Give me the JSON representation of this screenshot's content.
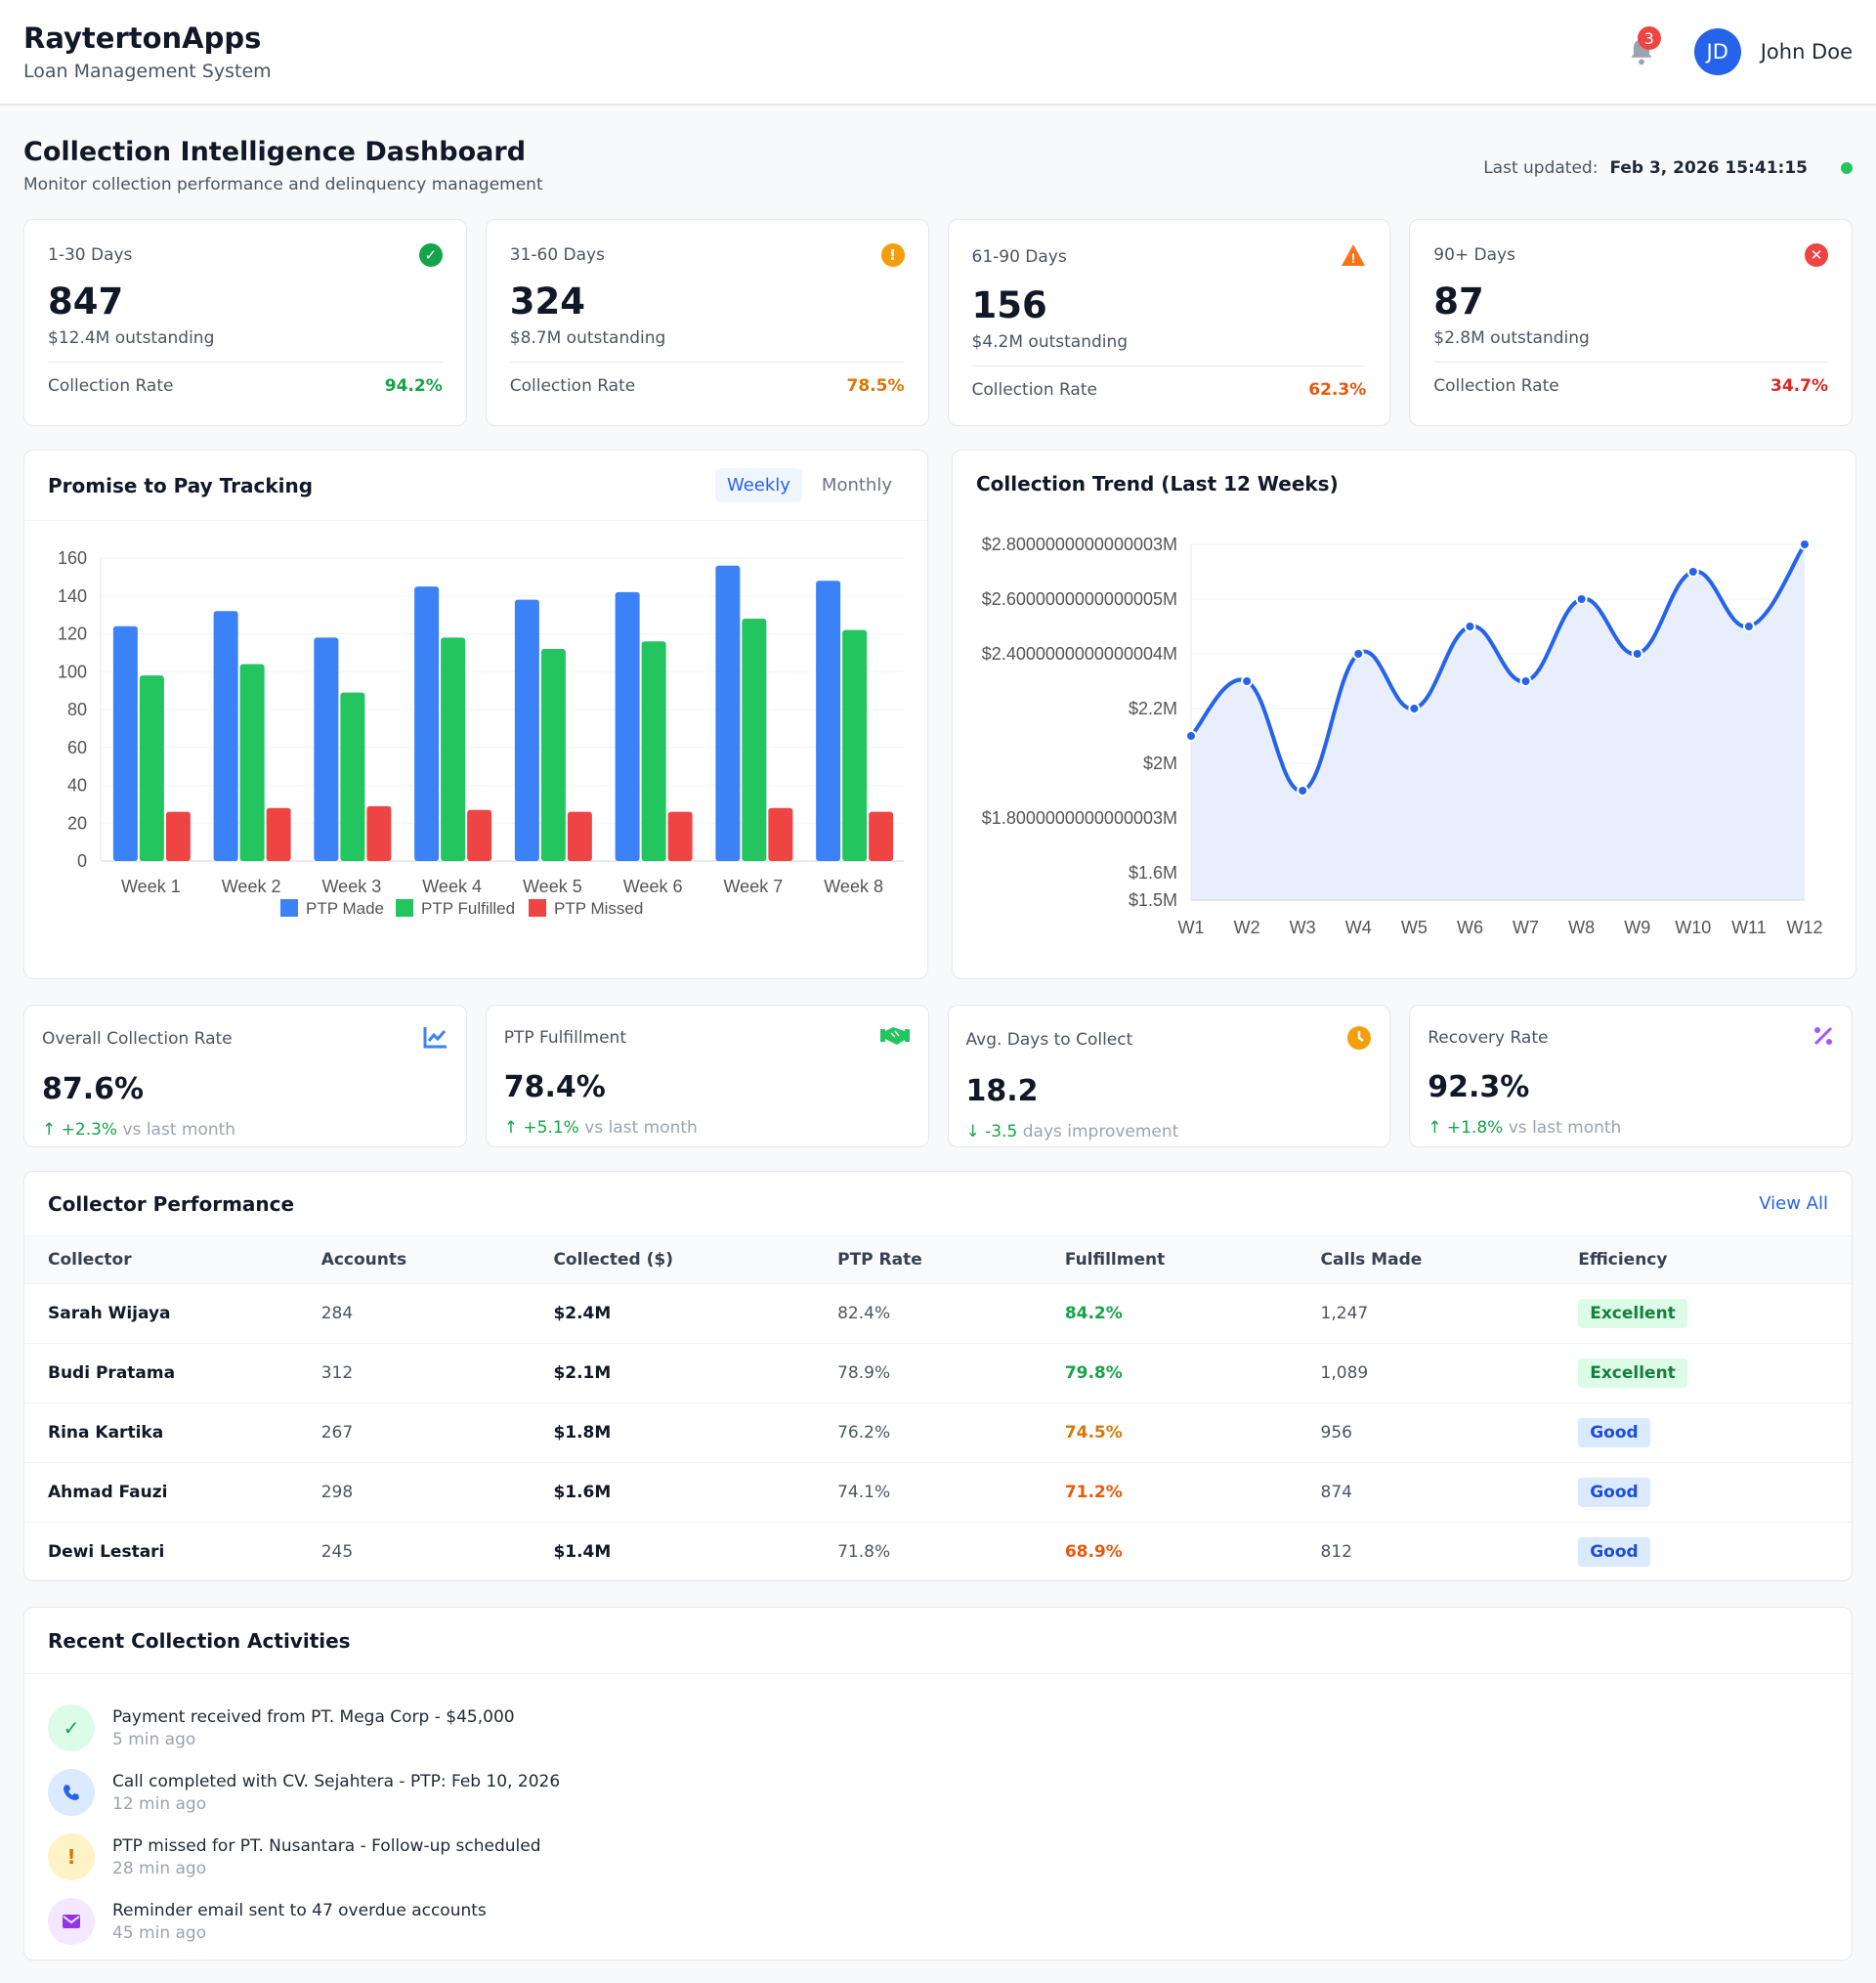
{
  "header": {
    "brand": "RaytertonApps",
    "subtitle": "Loan Management System",
    "notifications": "3",
    "avatar_initials": "JD",
    "user_name": "John Doe"
  },
  "page": {
    "title": "Collection Intelligence Dashboard",
    "subtitle": "Monitor collection performance and delinquency management",
    "last_updated_label": "Last updated:",
    "last_updated_value": "Feb 3, 2026 15:41:15"
  },
  "aging": [
    {
      "label": "1-30 Days",
      "count": "847",
      "outstanding": "$12.4M outstanding",
      "rate_label": "Collection Rate",
      "rate": "94.2%",
      "icon": "check-circle-icon",
      "color": "#16a34a"
    },
    {
      "label": "31-60 Days",
      "count": "324",
      "outstanding": "$8.7M outstanding",
      "rate_label": "Collection Rate",
      "rate": "78.5%",
      "icon": "exclamation-circle-icon",
      "color": "#d97706"
    },
    {
      "label": "61-90 Days",
      "count": "156",
      "outstanding": "$4.2M outstanding",
      "rate_label": "Collection Rate",
      "rate": "62.3%",
      "icon": "warning-triangle-icon",
      "color": "#ea580c"
    },
    {
      "label": "90+ Days",
      "count": "87",
      "outstanding": "$2.8M outstanding",
      "rate_label": "Collection Rate",
      "rate": "34.7%",
      "icon": "x-circle-icon",
      "color": "#dc2626"
    }
  ],
  "ptp": {
    "title": "Promise to Pay Tracking",
    "tabs": [
      "Weekly",
      "Monthly"
    ],
    "active_tab": "Weekly"
  },
  "trend": {
    "title": "Collection Trend (Last 12 Weeks)"
  },
  "chart_data": [
    {
      "type": "bar",
      "categories": [
        "Week 1",
        "Week 2",
        "Week 3",
        "Week 4",
        "Week 5",
        "Week 6",
        "Week 7",
        "Week 8"
      ],
      "series": [
        {
          "name": "PTP Made",
          "color": "#3b82f6",
          "values": [
            124,
            132,
            118,
            145,
            138,
            142,
            156,
            148
          ]
        },
        {
          "name": "PTP Fulfilled",
          "color": "#22c55e",
          "values": [
            98,
            104,
            89,
            118,
            112,
            116,
            128,
            122
          ]
        },
        {
          "name": "PTP Missed",
          "color": "#ef4444",
          "values": [
            26,
            28,
            29,
            27,
            26,
            26,
            28,
            26
          ]
        }
      ],
      "ylim": [
        0,
        160
      ],
      "yticks": [
        "0",
        "20",
        "40",
        "60",
        "80",
        "100",
        "120",
        "140",
        "160"
      ],
      "grid": true,
      "legend": "bottom"
    },
    {
      "type": "area",
      "x": [
        "W1",
        "W2",
        "W3",
        "W4",
        "W5",
        "W6",
        "W7",
        "W8",
        "W9",
        "W10",
        "W11",
        "W12"
      ],
      "series": [
        {
          "color": "#2563eb",
          "values": [
            2.1,
            2.3,
            1.9,
            2.4,
            2.2,
            2.5,
            2.3,
            2.6,
            2.4,
            2.7,
            2.5,
            2.8
          ]
        }
      ],
      "unit": "$M",
      "ylim": [
        1.5,
        2.8
      ],
      "yticks": [
        {
          "v": 1.5,
          "label": "$1.5M"
        },
        {
          "v": 1.6,
          "label": "$1.6M"
        },
        {
          "v": 1.8,
          "label": "$1.8000000000000003M"
        },
        {
          "v": 2.0,
          "label": "$2M"
        },
        {
          "v": 2.2,
          "label": "$2.2M"
        },
        {
          "v": 2.4,
          "label": "$2.4000000000000004M"
        },
        {
          "v": 2.6,
          "label": "$2.6000000000000005M"
        },
        {
          "v": 2.8,
          "label": "$2.8000000000000003M"
        }
      ],
      "grid": true
    }
  ],
  "metrics": [
    {
      "label": "Overall Collection Rate",
      "value": "87.6%",
      "change": "+2.3%",
      "suffix": "vs last month",
      "dir": "up",
      "icon": "line-chart-icon",
      "color": "#3b82f6"
    },
    {
      "label": "PTP Fulfillment",
      "value": "78.4%",
      "change": "+5.1%",
      "suffix": "vs last month",
      "dir": "up",
      "icon": "handshake-icon",
      "color": "#22c55e"
    },
    {
      "label": "Avg. Days to Collect",
      "value": "18.2",
      "change": "-3.5",
      "suffix": "days improvement",
      "dir": "down",
      "icon": "clock-icon",
      "color": "#f59e0b"
    },
    {
      "label": "Recovery Rate",
      "value": "92.3%",
      "change": "+1.8%",
      "suffix": "vs last month",
      "dir": "up",
      "icon": "percent-icon",
      "color": "#a855f7"
    }
  ],
  "collectors": {
    "title": "Collector Performance",
    "view_all": "View All",
    "columns": [
      "Collector",
      "Accounts",
      "Collected ($)",
      "PTP Rate",
      "Fulfillment",
      "Calls Made",
      "Efficiency"
    ],
    "rows": [
      {
        "name": "Sarah Wijaya",
        "accounts": "284",
        "collected": "$2.4M",
        "ptp": "82.4%",
        "fulfillment": "84.2%",
        "calls": "1,247",
        "efficiency": "Excellent",
        "fcolor": "#16a34a"
      },
      {
        "name": "Budi Pratama",
        "accounts": "312",
        "collected": "$2.1M",
        "ptp": "78.9%",
        "fulfillment": "79.8%",
        "calls": "1,089",
        "efficiency": "Excellent",
        "fcolor": "#16a34a"
      },
      {
        "name": "Rina Kartika",
        "accounts": "267",
        "collected": "$1.8M",
        "ptp": "76.2%",
        "fulfillment": "74.5%",
        "calls": "956",
        "efficiency": "Good",
        "fcolor": "#d97706"
      },
      {
        "name": "Ahmad Fauzi",
        "accounts": "298",
        "collected": "$1.6M",
        "ptp": "74.1%",
        "fulfillment": "71.2%",
        "calls": "874",
        "efficiency": "Good",
        "fcolor": "#ea580c"
      },
      {
        "name": "Dewi Lestari",
        "accounts": "245",
        "collected": "$1.4M",
        "ptp": "71.8%",
        "fulfillment": "68.9%",
        "calls": "812",
        "efficiency": "Good",
        "fcolor": "#ea580c"
      }
    ]
  },
  "activities": {
    "title": "Recent Collection Activities",
    "items": [
      {
        "text": "Payment received from PT. Mega Corp - $45,000",
        "time": "5 min ago",
        "icon": "check-icon",
        "bg": "#dcfce7",
        "fg": "#16a34a"
      },
      {
        "text": "Call completed with CV. Sejahtera - PTP: Feb 10, 2026",
        "time": "12 min ago",
        "icon": "phone-icon",
        "bg": "#dbeafe",
        "fg": "#2563eb"
      },
      {
        "text": "PTP missed for PT. Nusantara - Follow-up scheduled",
        "time": "28 min ago",
        "icon": "exclamation-icon",
        "bg": "#fef3c7",
        "fg": "#d97706"
      },
      {
        "text": "Reminder email sent to 47 overdue accounts",
        "time": "45 min ago",
        "icon": "envelope-icon",
        "bg": "#f3e8ff",
        "fg": "#9333ea"
      }
    ]
  }
}
